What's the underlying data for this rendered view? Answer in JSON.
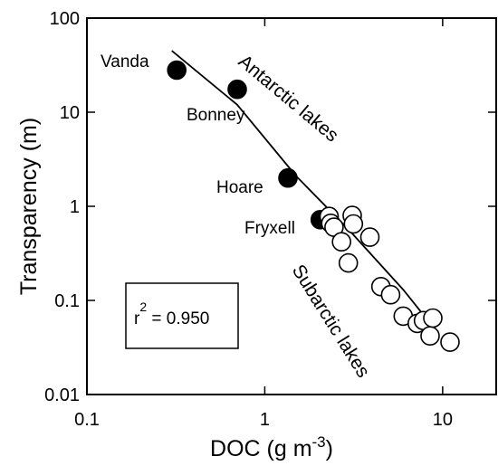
{
  "chart_data": {
    "type": "scatter",
    "xscale": "log",
    "yscale": "log",
    "xlim": [
      0.1,
      20
    ],
    "ylim": [
      0.01,
      100
    ],
    "xticks": [
      "0.1",
      "1",
      "10"
    ],
    "yticks": [
      "0.01",
      "0.1",
      "1",
      "10",
      "100"
    ],
    "xlabel": {
      "base": "DOC (g m",
      "exp": "-3",
      "close": ")"
    },
    "ylabel": "Transparency (m)",
    "grid": false,
    "annotation": {
      "prefix": "r",
      "exp": "2",
      "suffix": " = 0.950"
    },
    "group_labels": [
      "Antarctic lakes",
      "Subarctic lakes"
    ],
    "series": [
      {
        "marker": "filled-circle",
        "color": "#000000",
        "points": [
          {
            "label": "Vanda",
            "x": 0.32,
            "y": 28
          },
          {
            "label": "Bonney",
            "x": 0.7,
            "y": 17.5
          },
          {
            "label": "Hoare",
            "x": 1.35,
            "y": 2.0
          },
          {
            "label": "Fryxell",
            "x": 2.05,
            "y": 0.72
          }
        ]
      },
      {
        "marker": "open-circle",
        "color": "#000000",
        "points": [
          {
            "x": 2.3,
            "y": 0.78
          },
          {
            "x": 2.35,
            "y": 0.66
          },
          {
            "x": 2.45,
            "y": 0.6
          },
          {
            "x": 2.7,
            "y": 0.42
          },
          {
            "x": 3.1,
            "y": 0.8
          },
          {
            "x": 3.15,
            "y": 0.65
          },
          {
            "x": 2.95,
            "y": 0.25
          },
          {
            "x": 3.9,
            "y": 0.47
          },
          {
            "x": 4.5,
            "y": 0.14
          },
          {
            "x": 5.1,
            "y": 0.115
          },
          {
            "x": 6.0,
            "y": 0.068
          },
          {
            "x": 7.2,
            "y": 0.057
          },
          {
            "x": 7.8,
            "y": 0.061
          },
          {
            "x": 8.5,
            "y": 0.042
          },
          {
            "x": 8.8,
            "y": 0.065
          },
          {
            "x": 11.0,
            "y": 0.036
          }
        ]
      }
    ],
    "fit_line": [
      [
        0.3,
        45
      ],
      [
        0.7,
        12
      ],
      [
        1.5,
        2.1
      ],
      [
        3,
        0.55
      ],
      [
        6,
        0.13
      ],
      [
        9.5,
        0.044
      ]
    ]
  }
}
